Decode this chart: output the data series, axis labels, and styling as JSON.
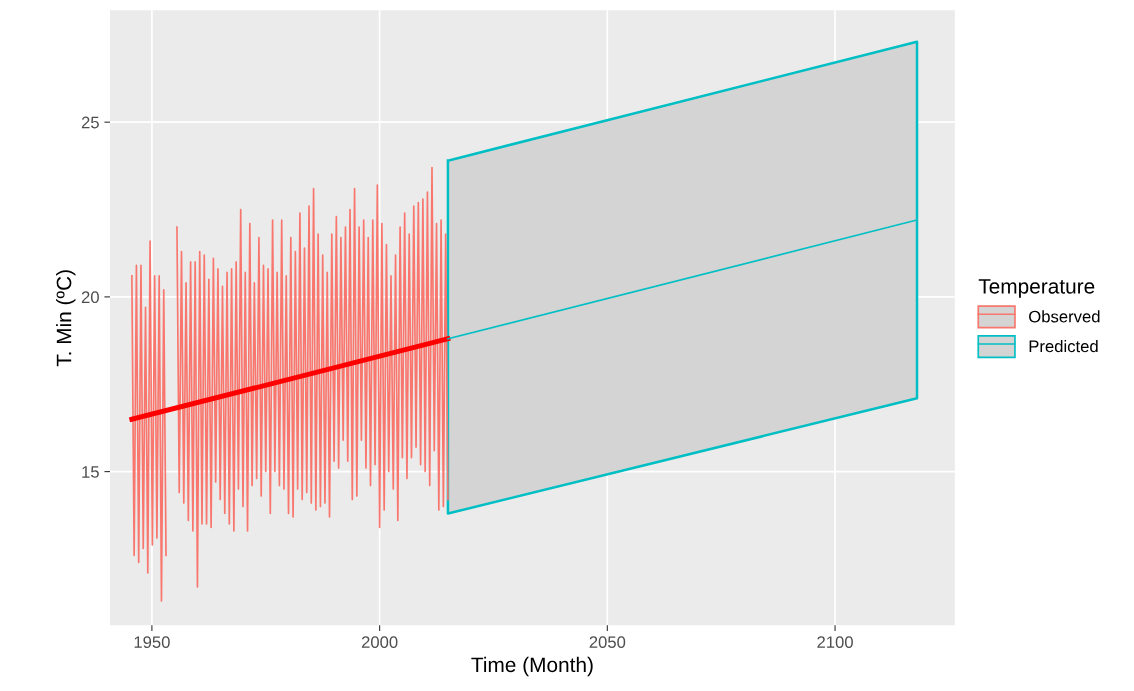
{
  "chart_data": {
    "type": "line",
    "xlabel": "Time (Month)",
    "ylabel": "T. Min (ºC)",
    "legend_title": "Temperature",
    "xlim": [
      1940.8,
      2126.3
    ],
    "ylim": [
      10.6,
      28.2
    ],
    "xticks": [
      1950,
      2000,
      2050,
      2100
    ],
    "yticks": [
      15,
      20,
      25
    ],
    "grid": true,
    "legend": "right",
    "series": [
      {
        "name": "Observed",
        "color": "#f8766d",
        "x": [
          1945.6,
          1946.1,
          1946.6,
          1947.1,
          1947.6,
          1948.1,
          1948.6,
          1949.1,
          1949.6,
          1950.1,
          1950.6,
          1951.1,
          1951.6,
          1952.1,
          1952.6,
          1953.1,
          1954.3,
          1955.5,
          1956.0,
          1956.5,
          1957.0,
          1957.5,
          1958.0,
          1958.5,
          1959.0,
          1959.5,
          1960.0,
          1960.5,
          1961.0,
          1961.5,
          1962.0,
          1962.5,
          1963.0,
          1963.5,
          1964.0,
          1964.5,
          1965.0,
          1965.5,
          1966.0,
          1966.5,
          1967.0,
          1967.5,
          1968.0,
          1968.5,
          1969.0,
          1969.5,
          1970.0,
          1970.5,
          1971.0,
          1971.5,
          1972.0,
          1972.5,
          1973.0,
          1973.5,
          1974.0,
          1974.5,
          1975.0,
          1975.5,
          1976.0,
          1976.5,
          1977.0,
          1977.5,
          1978.0,
          1978.5,
          1979.0,
          1979.5,
          1980.0,
          1980.5,
          1981.0,
          1981.5,
          1982.0,
          1982.5,
          1983.0,
          1983.5,
          1984.0,
          1984.5,
          1985.0,
          1985.5,
          1986.0,
          1986.5,
          1987.0,
          1987.5,
          1988.0,
          1988.5,
          1989.0,
          1989.5,
          1990.0,
          1990.5,
          1991.0,
          1991.5,
          1992.0,
          1992.5,
          1993.0,
          1993.5,
          1994.0,
          1994.5,
          1995.0,
          1995.5,
          1996.0,
          1996.5,
          1997.0,
          1997.5,
          1998.0,
          1998.5,
          1999.0,
          1999.5,
          2000.0,
          2000.5,
          2001.0,
          2001.5,
          2002.0,
          2002.5,
          2003.0,
          2003.5,
          2004.0,
          2004.5,
          2005.0,
          2005.5,
          2006.0,
          2006.5,
          2007.0,
          2007.5,
          2008.0,
          2008.5,
          2009.0,
          2009.5,
          2010.0,
          2010.5,
          2011.0,
          2011.5,
          2012.0,
          2012.5,
          2013.0,
          2013.5,
          2014.0,
          2014.5,
          2015.0
        ],
        "values": [
          20.6,
          12.6,
          20.9,
          12.4,
          20.9,
          12.8,
          19.7,
          12.1,
          21.6,
          12.9,
          20.6,
          13.1,
          20.6,
          11.3,
          20.2,
          12.6,
          null,
          22.0,
          14.4,
          21.3,
          14.1,
          20.4,
          13.6,
          21.0,
          13.3,
          21.0,
          11.7,
          21.3,
          13.5,
          21.2,
          13.5,
          20.5,
          13.4,
          21.1,
          14.7,
          20.8,
          14.2,
          20.3,
          13.8,
          20.7,
          13.5,
          20.8,
          13.3,
          21.0,
          14.5,
          22.5,
          14.0,
          20.7,
          13.3,
          22.1,
          14.6,
          20.4,
          14.8,
          21.7,
          14.3,
          20.9,
          15.0,
          20.8,
          13.8,
          22.2,
          15.0,
          20.7,
          14.6,
          22.2,
          14.5,
          20.6,
          13.8,
          21.7,
          13.7,
          21.3,
          14.5,
          22.4,
          14.2,
          21.4,
          14.4,
          22.6,
          14.1,
          23.1,
          13.9,
          21.8,
          14.0,
          21.2,
          14.1,
          20.7,
          13.7,
          21.8,
          15.3,
          22.3,
          15.1,
          21.7,
          15.9,
          22.0,
          15.3,
          22.5,
          14.2,
          23.1,
          14.3,
          22.0,
          15.9,
          22.2,
          15.1,
          21.7,
          14.6,
          22.2,
          15.2,
          23.2,
          13.4,
          22.1,
          13.9,
          21.5,
          15.0,
          20.6,
          14.5,
          21.2,
          13.6,
          22.0,
          15.4,
          22.4,
          14.8,
          21.8,
          15.4,
          22.6,
          15.7,
          22.7,
          15.2,
          22.8,
          15.0,
          23.0,
          14.6,
          23.7,
          15.6,
          22.1,
          13.9,
          22.2,
          14.0,
          21.8,
          14.2
        ]
      },
      {
        "color": "#ff0000",
        "x": [
          1945.6,
          2015.0
        ],
        "values": [
          16.5,
          18.8
        ]
      },
      {
        "name": "Predicted",
        "color": "#00bfc4",
        "x": [
          2015.0,
          2118.0
        ],
        "values": [
          18.8,
          22.2
        ],
        "lower": [
          13.8,
          17.1
        ],
        "upper": [
          23.9,
          27.3
        ]
      }
    ]
  }
}
